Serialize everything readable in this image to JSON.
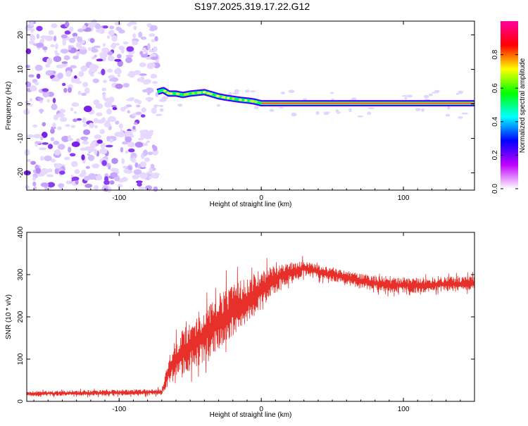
{
  "title": "S197.2025.319.17.22.G12",
  "chart_data": [
    {
      "type": "heatmap",
      "name": "spectrogram",
      "xlabel": "Height of straight line (km)",
      "ylabel": "Frequency (Hz)",
      "xlim": [
        -165,
        150
      ],
      "ylim": [
        -25,
        24
      ],
      "xticks": [
        -100,
        0,
        100
      ],
      "yticks": [
        -20,
        -10,
        0,
        10,
        20
      ],
      "xtick_labels": [
        "-100",
        "0",
        "100"
      ],
      "ytick_labels": [
        "-20",
        "-10",
        "0",
        "10",
        "20"
      ],
      "noise_region_x": [
        -165,
        -75
      ],
      "signal_trace": [
        {
          "x": -73,
          "y": 3.5
        },
        {
          "x": -69,
          "y": 4.0
        },
        {
          "x": -65,
          "y": 3.0
        },
        {
          "x": -60,
          "y": 3.0
        },
        {
          "x": -55,
          "y": 2.6
        },
        {
          "x": -50,
          "y": 3.0
        },
        {
          "x": -45,
          "y": 3.2
        },
        {
          "x": -40,
          "y": 3.4
        },
        {
          "x": -35,
          "y": 2.8
        },
        {
          "x": -30,
          "y": 2.2
        },
        {
          "x": -25,
          "y": 1.8
        },
        {
          "x": -20,
          "y": 1.5
        },
        {
          "x": -15,
          "y": 1.2
        },
        {
          "x": -10,
          "y": 1.0
        },
        {
          "x": -5,
          "y": 0.7
        },
        {
          "x": 0,
          "y": 0.2
        },
        {
          "x": 150,
          "y": 0.2
        }
      ],
      "colorbar": {
        "label": "Normalized spectral amplitude",
        "range": [
          0,
          1
        ],
        "ticks": [
          0.0,
          0.2,
          0.4,
          0.6,
          0.8
        ],
        "tick_labels": [
          "0.0",
          "0.2",
          "0.4",
          "0.6",
          "0.8"
        ],
        "colors": [
          "#ffffff",
          "#c000ff",
          "#0000ff",
          "#00ffff",
          "#00ff00",
          "#ffff00",
          "#ff0000",
          "#ff00a0"
        ]
      }
    },
    {
      "type": "line",
      "name": "snr",
      "xlabel": "Height of straight line (km)",
      "ylabel": "SNR (10 * v/v)",
      "xlim": [
        -165,
        150
      ],
      "ylim": [
        0,
        400
      ],
      "xticks": [
        -100,
        0,
        100
      ],
      "yticks": [
        0,
        100,
        200,
        300,
        400
      ],
      "xtick_labels": [
        "-100",
        "0",
        "100"
      ],
      "ytick_labels": [
        "0",
        "100",
        "200",
        "300",
        "400"
      ],
      "color": "#e8302a",
      "envelope": [
        {
          "x": -165,
          "base": 18,
          "amp": 10
        },
        {
          "x": -70,
          "base": 22,
          "amp": 12
        },
        {
          "x": -64,
          "base": 80,
          "amp": 70
        },
        {
          "x": -55,
          "base": 120,
          "amp": 90
        },
        {
          "x": -45,
          "base": 140,
          "amp": 100
        },
        {
          "x": -35,
          "base": 175,
          "amp": 110
        },
        {
          "x": -25,
          "base": 200,
          "amp": 110
        },
        {
          "x": -15,
          "base": 225,
          "amp": 100
        },
        {
          "x": 0,
          "base": 265,
          "amp": 80
        },
        {
          "x": 15,
          "base": 300,
          "amp": 45
        },
        {
          "x": 30,
          "base": 315,
          "amp": 30
        },
        {
          "x": 50,
          "base": 300,
          "amp": 25
        },
        {
          "x": 70,
          "base": 285,
          "amp": 30
        },
        {
          "x": 90,
          "base": 275,
          "amp": 30
        },
        {
          "x": 110,
          "base": 275,
          "amp": 30
        },
        {
          "x": 150,
          "base": 280,
          "amp": 28
        }
      ]
    }
  ]
}
